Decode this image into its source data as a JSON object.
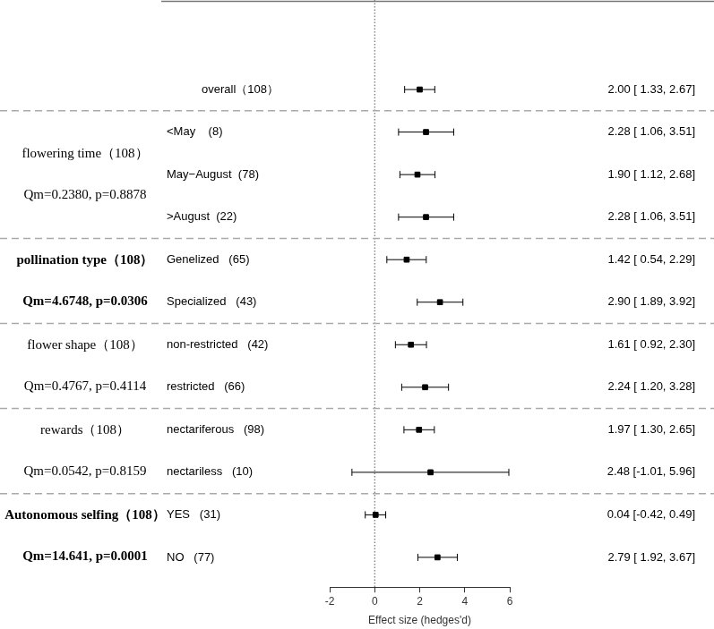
{
  "chart_data": {
    "type": "forest",
    "x_label": "Effect size (hedges'd)",
    "xlim": [
      -2,
      6
    ],
    "xticks": [
      -2,
      0,
      2,
      4,
      6
    ],
    "reference": 0,
    "marker": "square",
    "color": "#000000",
    "overall": {
      "label": "overall（108）",
      "value": 2.0,
      "ci": [
        1.33,
        2.67
      ],
      "value_label": "2.00 [ 1.33, 2.67]"
    },
    "groups": [
      {
        "name": "flowering time（108）",
        "stats": "Qm=0.2380, p=0.8878",
        "p": 0.8878,
        "rows": [
          {
            "label": "<May    (8)",
            "value": 2.28,
            "ci": [
              1.06,
              3.51
            ],
            "value_label": "2.28 [ 1.06, 3.51]"
          },
          {
            "label": "May−August  (78)",
            "value": 1.9,
            "ci": [
              1.12,
              2.68
            ],
            "value_label": "1.90 [ 1.12, 2.68]"
          },
          {
            "label": ">August  (22)",
            "value": 2.28,
            "ci": [
              1.06,
              3.51
            ],
            "value_label": "2.28 [ 1.06, 3.51]"
          }
        ]
      },
      {
        "name": "pollination type（108）",
        "stats": "Qm=4.6748, p=0.0306",
        "p": 0.0306,
        "rows": [
          {
            "label": "Genelized   (65)",
            "value": 1.42,
            "ci": [
              0.54,
              2.29
            ],
            "value_label": "1.42 [ 0.54, 2.29]"
          },
          {
            "label": "Specialized   (43)",
            "value": 2.9,
            "ci": [
              1.89,
              3.92
            ],
            "value_label": "2.90 [ 1.89, 3.92]"
          }
        ]
      },
      {
        "name": "flower shape（108）",
        "stats": "Qm=0.4767, p=0.4114",
        "p": 0.4114,
        "rows": [
          {
            "label": "non-restricted   (42)",
            "value": 1.61,
            "ci": [
              0.92,
              2.3
            ],
            "value_label": "1.61 [ 0.92, 2.30]"
          },
          {
            "label": "restricted   (66)",
            "value": 2.24,
            "ci": [
              1.2,
              3.28
            ],
            "value_label": "2.24 [ 1.20, 3.28]"
          }
        ]
      },
      {
        "name": "rewards（108）",
        "stats": "Qm=0.0542, p=0.8159",
        "p": 0.8159,
        "rows": [
          {
            "label": "nectariferous   (98)",
            "value": 1.97,
            "ci": [
              1.3,
              2.65
            ],
            "value_label": "1.97 [ 1.30, 2.65]"
          },
          {
            "label": "nectariless   (10)",
            "value": 2.48,
            "ci": [
              -1.01,
              5.96
            ],
            "value_label": "2.48 [-1.01, 5.96]"
          }
        ]
      },
      {
        "name": "Autonomous selfing（108）",
        "stats": "Qm=14.641, p=0.0001",
        "p": 0.0001,
        "rows": [
          {
            "label": "YES   (31)",
            "value": 0.04,
            "ci": [
              -0.42,
              0.49
            ],
            "value_label": "0.04 [-0.42, 0.49]"
          },
          {
            "label": "NO   (77)",
            "value": 2.79,
            "ci": [
              1.92,
              3.67
            ],
            "value_label": "2.79 [ 1.92, 3.67]"
          }
        ]
      }
    ]
  }
}
